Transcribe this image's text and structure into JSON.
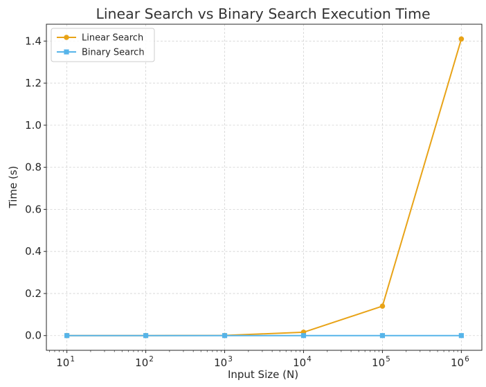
{
  "chart_data": {
    "type": "line",
    "title": "Linear Search vs Binary Search Execution Time",
    "xlabel": "Input Size (N)",
    "ylabel": "Time (s)",
    "xscale": "log",
    "x": [
      10,
      100,
      1000,
      10000,
      100000,
      1000000
    ],
    "xticks": [
      {
        "value": 10,
        "base": "10",
        "exp": "1"
      },
      {
        "value": 100,
        "base": "10",
        "exp": "2"
      },
      {
        "value": 1000,
        "base": "10",
        "exp": "3"
      },
      {
        "value": 10000,
        "base": "10",
        "exp": "4"
      },
      {
        "value": 100000,
        "base": "10",
        "exp": "5"
      },
      {
        "value": 1000000,
        "base": "10",
        "exp": "6"
      }
    ],
    "yticks": [
      "0.0",
      "0.2",
      "0.4",
      "0.6",
      "0.8",
      "1.0",
      "1.2",
      "1.4"
    ],
    "ylim": [
      -0.07,
      1.48
    ],
    "grid": true,
    "legend_position": "top-left",
    "series": [
      {
        "name": "Linear Search",
        "color": "#e8a317",
        "marker": "circle",
        "values": [
          1e-05,
          5e-05,
          0.0006,
          0.016,
          0.14,
          1.41
        ]
      },
      {
        "name": "Binary Search",
        "color": "#56b4e9",
        "marker": "square",
        "values": [
          2e-06,
          3e-06,
          4e-06,
          5e-06,
          6e-06,
          7e-06
        ]
      }
    ]
  }
}
